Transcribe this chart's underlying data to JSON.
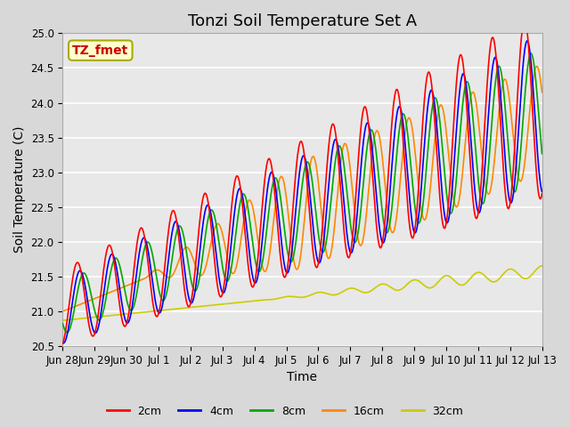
{
  "title": "Tonzi Soil Temperature Set A",
  "xlabel": "Time",
  "ylabel": "Soil Temperature (C)",
  "ylim": [
    20.5,
    25.0
  ],
  "line_colors": {
    "2cm": "#ff0000",
    "4cm": "#0000ff",
    "8cm": "#00aa00",
    "16cm": "#ff8800",
    "32cm": "#cccc00"
  },
  "legend_labels": [
    "2cm",
    "4cm",
    "8cm",
    "16cm",
    "32cm"
  ],
  "annotation_label": "TZ_fmet",
  "annotation_color": "#cc0000",
  "annotation_bg": "#ffffcc",
  "annotation_border": "#aaaa00",
  "fig_bg": "#d8d8d8",
  "plot_bg": "#e8e8e8",
  "grid_color": "#ffffff",
  "title_fontsize": 13,
  "axis_fontsize": 10,
  "tick_fontsize": 8.5,
  "n_days": 15,
  "x_tick_labels": [
    "Jun 28",
    "Jun 29",
    "Jun 30",
    "Jul 1",
    "Jul 2",
    "Jul 3",
    "Jul 4",
    "Jul 5",
    "Jul 6",
    "Jul 7",
    "Jul 8",
    "Jul 9",
    "Jul 10",
    "Jul 11",
    "Jul 12",
    "Jul 13"
  ],
  "yticks": [
    20.5,
    21.0,
    21.5,
    22.0,
    22.5,
    23.0,
    23.5,
    24.0,
    24.5,
    25.0
  ]
}
